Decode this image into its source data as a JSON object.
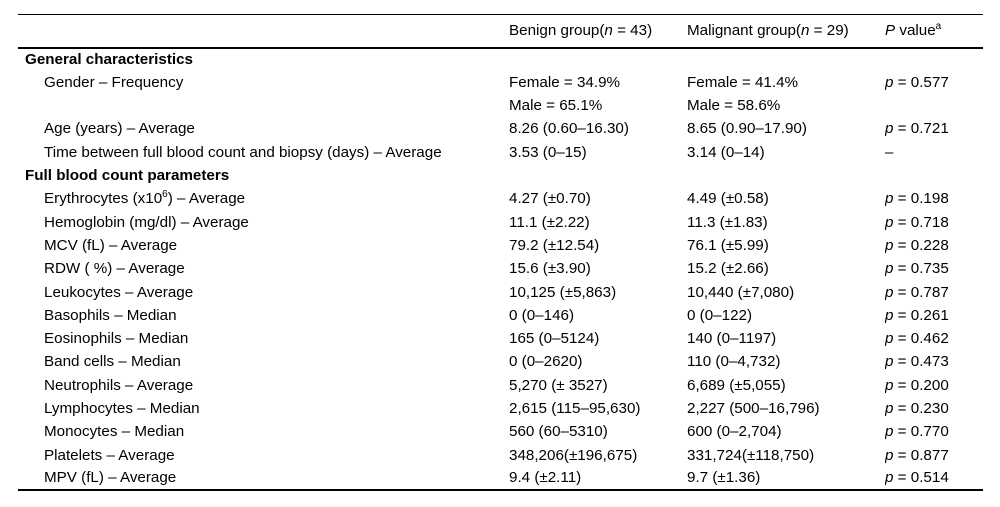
{
  "table": {
    "columns": [
      {
        "label": ""
      },
      {
        "label": "Benign group({i:n} = 43)"
      },
      {
        "label": "Malignant group({i:n} = 29)"
      },
      {
        "label": "{i:P} value{sup:a}"
      }
    ],
    "rows": [
      {
        "type": "section",
        "label": "General characteristics"
      },
      {
        "type": "data",
        "label": "Gender – Frequency",
        "benign": "Female = 34.9%",
        "malignant": "Female = 41.4%",
        "p": "{i:p} = 0.577"
      },
      {
        "type": "data",
        "label": "",
        "benign": "Male = 65.1%",
        "malignant": "Male = 58.6%",
        "p": ""
      },
      {
        "type": "data",
        "label": "Age (years) – Average",
        "benign": "8.26 (0.60–16.30)",
        "malignant": "8.65 (0.90–17.90)",
        "p": "{i:p} = 0.721"
      },
      {
        "type": "data",
        "label": "Time between full blood count and biopsy (days) – Average",
        "benign": "3.53 (0–15)",
        "malignant": "3.14 (0–14)",
        "p": "–"
      },
      {
        "type": "section",
        "label": "Full blood count parameters"
      },
      {
        "type": "data",
        "label": "Erythrocytes (x10{sup:6}) – Average",
        "benign": "4.27 (±0.70)",
        "malignant": "4.49 (±0.58)",
        "p": "{i:p} = 0.198"
      },
      {
        "type": "data",
        "label": "Hemoglobin (mg/dl) – Average",
        "benign": "11.1 (±2.22)",
        "malignant": "11.3 (±1.83)",
        "p": "{i:p} = 0.718"
      },
      {
        "type": "data",
        "label": "MCV (fL) – Average",
        "benign": "79.2 (±12.54)",
        "malignant": "76.1 (±5.99)",
        "p": "{i:p} = 0.228"
      },
      {
        "type": "data",
        "label": "RDW ( %) – Average",
        "benign": "15.6 (±3.90)",
        "malignant": "15.2 (±2.66)",
        "p": "{i:p} = 0.735"
      },
      {
        "type": "data",
        "label": "Leukocytes – Average",
        "benign": "10,125 (±5,863)",
        "malignant": "10,440 (±7,080)",
        "p": "{i:p} = 0.787"
      },
      {
        "type": "data",
        "label": "Basophils – Median",
        "benign": "0 (0–146)",
        "malignant": "0 (0–122)",
        "p": "{i:p} = 0.261"
      },
      {
        "type": "data",
        "label": "Eosinophils – Median",
        "benign": "165 (0–5124)",
        "malignant": "140 (0–1197)",
        "p": "{i:p} = 0.462"
      },
      {
        "type": "data",
        "label": "Band cells – Median",
        "benign": "0 (0–2620)",
        "malignant": "110 (0–4,732)",
        "p": "{i:p} = 0.473"
      },
      {
        "type": "data",
        "label": "Neutrophils – Average",
        "benign": "5,270 (± 3527)",
        "malignant": "6,689 (±5,055)",
        "p": "{i:p} = 0.200"
      },
      {
        "type": "data",
        "label": "Lymphocytes – Median",
        "benign": "2,615 (115–95,630)",
        "malignant": "2,227 (500–16,796)",
        "p": "{i:p} = 0.230"
      },
      {
        "type": "data",
        "label": "Monocytes – Median",
        "benign": "560 (60–5310)",
        "malignant": "600 (0–2,704)",
        "p": "{i:p} = 0.770"
      },
      {
        "type": "data",
        "label": "Platelets – Average",
        "benign": "348,206(±196,675)",
        "malignant": "331,724(±118,750)",
        "p": "{i:p} = 0.877"
      },
      {
        "type": "data",
        "label": "MPV (fL) – Average",
        "benign": "9.4 (±2.11)",
        "malignant": "9.7 (±1.36)",
        "p": "{i:p} = 0.514"
      }
    ]
  }
}
